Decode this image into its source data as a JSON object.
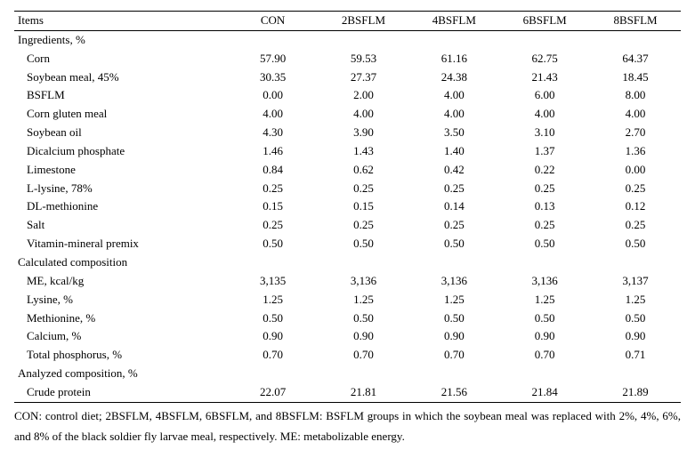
{
  "columns": [
    "Items",
    "CON",
    "2BSFLM",
    "4BSFLM",
    "6BSFLM",
    "8BSFLM"
  ],
  "sections": [
    {
      "title": "Ingredients, %",
      "rows": [
        {
          "label": "Corn",
          "vals": [
            "57.90",
            "59.53",
            "61.16",
            "62.75",
            "64.37"
          ]
        },
        {
          "label": "Soybean meal, 45%",
          "vals": [
            "30.35",
            "27.37",
            "24.38",
            "21.43",
            "18.45"
          ]
        },
        {
          "label": "BSFLM",
          "vals": [
            "0.00",
            "2.00",
            "4.00",
            "6.00",
            "8.00"
          ]
        },
        {
          "label": "Corn gluten meal",
          "vals": [
            "4.00",
            "4.00",
            "4.00",
            "4.00",
            "4.00"
          ]
        },
        {
          "label": "Soybean oil",
          "vals": [
            "4.30",
            "3.90",
            "3.50",
            "3.10",
            "2.70"
          ]
        },
        {
          "label": "Dicalcium phosphate",
          "vals": [
            "1.46",
            "1.43",
            "1.40",
            "1.37",
            "1.36"
          ]
        },
        {
          "label": "Limestone",
          "vals": [
            "0.84",
            "0.62",
            "0.42",
            "0.22",
            "0.00"
          ]
        },
        {
          "label": "L-lysine, 78%",
          "vals": [
            "0.25",
            "0.25",
            "0.25",
            "0.25",
            "0.25"
          ]
        },
        {
          "label": "DL-methionine",
          "vals": [
            "0.15",
            "0.15",
            "0.14",
            "0.13",
            "0.12"
          ]
        },
        {
          "label": "Salt",
          "vals": [
            "0.25",
            "0.25",
            "0.25",
            "0.25",
            "0.25"
          ]
        },
        {
          "label": "Vitamin-mineral premix",
          "vals": [
            "0.50",
            "0.50",
            "0.50",
            "0.50",
            "0.50"
          ]
        }
      ]
    },
    {
      "title": "Calculated composition",
      "rows": [
        {
          "label": "ME, kcal/kg",
          "vals": [
            "3,135",
            "3,136",
            "3,136",
            "3,136",
            "3,137"
          ]
        },
        {
          "label": "Lysine, %",
          "vals": [
            "1.25",
            "1.25",
            "1.25",
            "1.25",
            "1.25"
          ]
        },
        {
          "label": "Methionine, %",
          "vals": [
            "0.50",
            "0.50",
            "0.50",
            "0.50",
            "0.50"
          ]
        },
        {
          "label": "Calcium, %",
          "vals": [
            "0.90",
            "0.90",
            "0.90",
            "0.90",
            "0.90"
          ]
        },
        {
          "label": "Total phosphorus, %",
          "vals": [
            "0.70",
            "0.70",
            "0.70",
            "0.70",
            "0.71"
          ]
        }
      ]
    },
    {
      "title": "Analyzed composition, %",
      "rows": [
        {
          "label": "Crude protein",
          "vals": [
            "22.07",
            "21.81",
            "21.56",
            "21.84",
            "21.89"
          ]
        }
      ]
    }
  ],
  "footnote": "CON: control diet; 2BSFLM, 4BSFLM, 6BSFLM, and 8BSFLM: BSFLM groups in which the soybean meal was replaced with 2%, 4%, 6%, and 8% of the black soldier fly larvae meal, respectively. ME: metabolizable energy."
}
